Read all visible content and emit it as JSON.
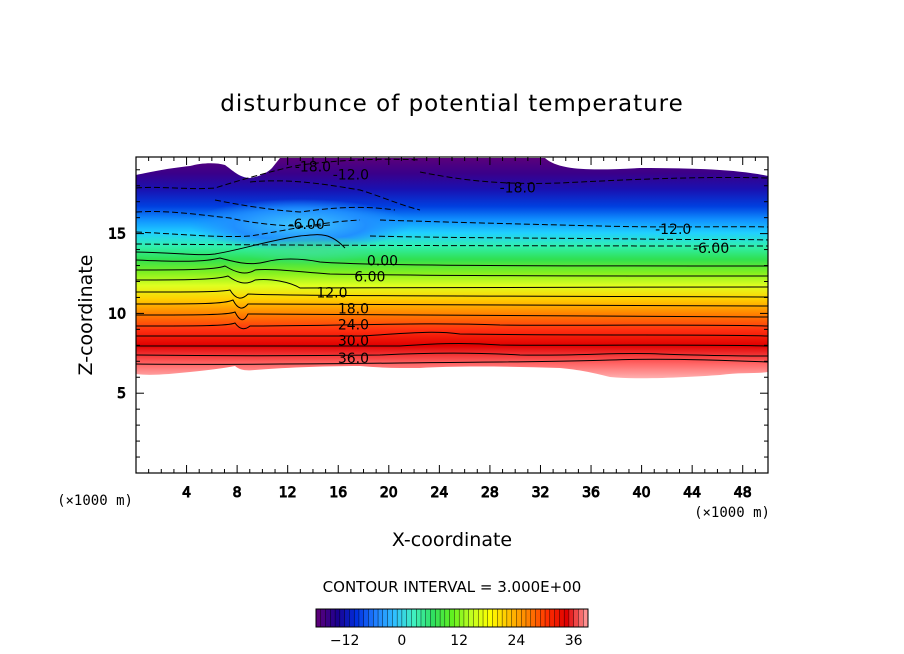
{
  "chart_data": {
    "type": "heatmap",
    "title": "disturbunce of potential temperature",
    "xlabel": "X-coordinate",
    "ylabel": "Z-coordinate",
    "x_unit": "(×1000 m)",
    "y_unit": "(×1000 m)",
    "xlim": [
      0,
      50
    ],
    "ylim": [
      0,
      19.8
    ],
    "x_ticks": [
      4,
      8,
      12,
      16,
      20,
      24,
      28,
      32,
      36,
      40,
      44,
      48
    ],
    "x_tick_labels": [
      "4",
      "8",
      "12",
      "16",
      "20",
      "24",
      "28",
      "32",
      "36",
      "40",
      "44",
      "48"
    ],
    "y_ticks": [
      5,
      10,
      15
    ],
    "y_tick_labels": [
      "5",
      "10",
      "15"
    ],
    "contour_interval_text": "CONTOUR INTERVAL = 3.000E+00",
    "colorbar": {
      "range": [
        -18,
        39
      ],
      "ticks": [
        -12,
        0,
        12,
        24,
        36
      ],
      "tick_labels": [
        "−12",
        "0",
        "12",
        "24",
        "36"
      ],
      "colors": [
        "#5a007a",
        "#1a0090",
        "#0030e0",
        "#2080ff",
        "#30c0ff",
        "#40f0c0",
        "#30e060",
        "#60f020",
        "#c0ff20",
        "#ffff00",
        "#ffc000",
        "#ff8000",
        "#ff3000",
        "#e00000",
        "#ff9090"
      ]
    },
    "contour_labels": [
      {
        "text": "-18.0",
        "x": 14.0,
        "z": 19.2
      },
      {
        "text": "-12.0",
        "x": 17.0,
        "z": 18.7
      },
      {
        "text": "-18.0",
        "x": 30.2,
        "z": 17.9
      },
      {
        "text": "-6.00",
        "x": 13.5,
        "z": 15.6
      },
      {
        "text": "-12.0",
        "x": 42.5,
        "z": 15.3
      },
      {
        "text": "-6.00",
        "x": 45.5,
        "z": 14.1
      },
      {
        "text": "0.00",
        "x": 19.5,
        "z": 13.3
      },
      {
        "text": "6.00",
        "x": 18.5,
        "z": 12.3
      },
      {
        "text": "12.0",
        "x": 15.5,
        "z": 11.3
      },
      {
        "text": "18.0",
        "x": 17.2,
        "z": 10.3
      },
      {
        "text": "24.0",
        "x": 17.2,
        "z": 9.3
      },
      {
        "text": "30.0",
        "x": 17.2,
        "z": 8.3
      },
      {
        "text": "36.0",
        "x": 17.2,
        "z": 7.2
      }
    ]
  }
}
